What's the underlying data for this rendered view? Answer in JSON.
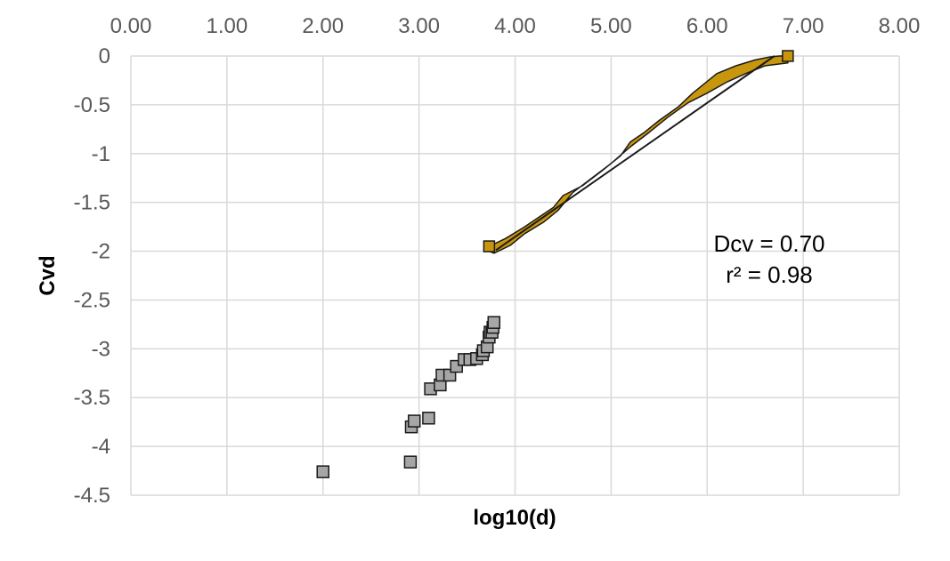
{
  "chart_data": {
    "type": "scatter",
    "title": "",
    "xlabel": "log10(d)",
    "ylabel": "Cvd",
    "xlim": [
      0,
      8
    ],
    "ylim": [
      -4.5,
      0
    ],
    "x_axis_position": "top",
    "x_ticks": [
      "0.00",
      "1.00",
      "2.00",
      "3.00",
      "4.00",
      "5.00",
      "6.00",
      "7.00",
      "8.00"
    ],
    "y_ticks": [
      "0",
      "-0.5",
      "-1",
      "-1.5",
      "-2",
      "-2.5",
      "-3",
      "-3.5",
      "-4",
      "-4.5"
    ],
    "grid": true,
    "legend": "none",
    "annotations": [
      "Dcv = 0.70",
      "r² = 0.98"
    ],
    "colors": {
      "dense_series": "#C8960C",
      "dense_outline": "#1a1a1a",
      "sparse_series": "#A6A6A6",
      "fit_line": "#1a1a1a",
      "grid": "#D9D9D9"
    },
    "series": [
      {
        "points": [
          [
            2.0,
            -4.26
          ],
          [
            2.91,
            -4.16
          ],
          [
            2.92,
            -3.8
          ],
          [
            2.95,
            -3.74
          ],
          [
            3.1,
            -3.71
          ],
          [
            3.12,
            -3.41
          ],
          [
            3.22,
            -3.37
          ],
          [
            3.24,
            -3.27
          ],
          [
            3.32,
            -3.27
          ],
          [
            3.39,
            -3.18
          ],
          [
            3.47,
            -3.11
          ],
          [
            3.53,
            -3.11
          ],
          [
            3.6,
            -3.1
          ],
          [
            3.66,
            -3.06
          ],
          [
            3.67,
            -3.02
          ],
          [
            3.71,
            -2.98
          ],
          [
            3.73,
            -2.88
          ],
          [
            3.74,
            -2.83
          ],
          [
            3.76,
            -2.83
          ],
          [
            3.77,
            -2.78
          ],
          [
            3.78,
            -2.73
          ]
        ]
      },
      {
        "upper_edge": [
          [
            3.73,
            -1.95
          ],
          [
            3.9,
            -1.87
          ],
          [
            4.1,
            -1.75
          ],
          [
            4.25,
            -1.65
          ],
          [
            4.4,
            -1.55
          ],
          [
            4.5,
            -1.43
          ],
          [
            4.7,
            -1.33
          ],
          [
            4.9,
            -1.18
          ],
          [
            5.1,
            -1.02
          ],
          [
            5.2,
            -0.88
          ],
          [
            5.35,
            -0.78
          ],
          [
            5.5,
            -0.66
          ],
          [
            5.7,
            -0.52
          ],
          [
            5.85,
            -0.38
          ],
          [
            5.95,
            -0.3
          ],
          [
            6.1,
            -0.18
          ],
          [
            6.3,
            -0.1
          ],
          [
            6.5,
            -0.04
          ],
          [
            6.65,
            -0.01
          ],
          [
            6.75,
            0.0
          ],
          [
            6.84,
            0.0
          ]
        ],
        "lower_edge": [
          [
            6.84,
            -0.07
          ],
          [
            6.6,
            -0.1
          ],
          [
            6.4,
            -0.18
          ],
          [
            6.2,
            -0.27
          ],
          [
            6.0,
            -0.38
          ],
          [
            5.8,
            -0.48
          ],
          [
            5.6,
            -0.62
          ],
          [
            5.4,
            -0.78
          ],
          [
            5.2,
            -0.93
          ],
          [
            5.0,
            -1.1
          ],
          [
            4.8,
            -1.25
          ],
          [
            4.6,
            -1.4
          ],
          [
            4.45,
            -1.58
          ],
          [
            4.3,
            -1.7
          ],
          [
            4.1,
            -1.82
          ],
          [
            3.95,
            -1.94
          ],
          [
            3.78,
            -2.02
          ],
          [
            3.73,
            -2.0
          ]
        ],
        "fit_line": [
          [
            3.8,
            -1.99
          ],
          [
            6.7,
            0.0
          ]
        ]
      }
    ]
  }
}
